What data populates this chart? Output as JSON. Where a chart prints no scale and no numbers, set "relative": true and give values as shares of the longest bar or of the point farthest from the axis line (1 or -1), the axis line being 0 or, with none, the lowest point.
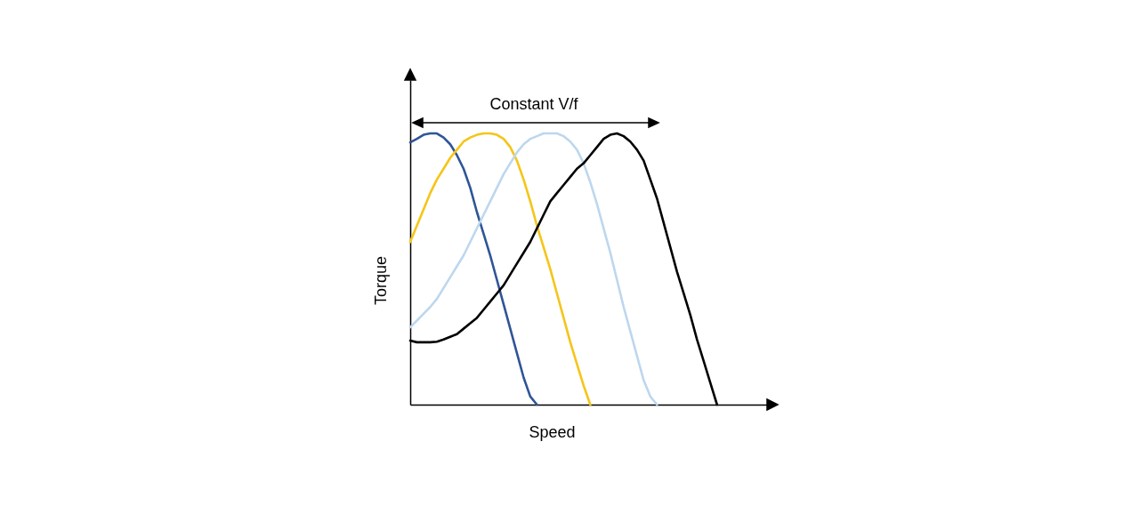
{
  "chart_data": {
    "type": "line",
    "relative": true,
    "xlabel": "Speed",
    "ylabel": "Torque",
    "annotations": [
      "Constant V/f"
    ],
    "categories": [
      null,
      null,
      null,
      null,
      null,
      null,
      null,
      null,
      null,
      null,
      null,
      null,
      null,
      null,
      null,
      null,
      null,
      null,
      null,
      null,
      null,
      null,
      null,
      null,
      null,
      null,
      null,
      null,
      null,
      null,
      null,
      null,
      null,
      null,
      null,
      null,
      null,
      null,
      null,
      null,
      null,
      null,
      null,
      null,
      null,
      null,
      null
    ],
    "series": [
      {
        "color": "#2f5597",
        "values": [
          0.967,
          0.98,
          0.995,
          1.0,
          1.0,
          0.985,
          0.96,
          0.92,
          0.87,
          0.8,
          0.71,
          0.63,
          0.55,
          0.46,
          0.37,
          0.28,
          0.19,
          0.1,
          0.03,
          0,
          null,
          null,
          null,
          null,
          null,
          null,
          null,
          null,
          null,
          null,
          null,
          null,
          null,
          null,
          null,
          null,
          null,
          null,
          null,
          null,
          null,
          null,
          null,
          null,
          null,
          null,
          null
        ]
      },
      {
        "color": "#f5c518",
        "values": [
          0.6,
          0.66,
          0.72,
          0.78,
          0.83,
          0.87,
          0.91,
          0.94,
          0.97,
          0.985,
          0.995,
          1.0,
          1.0,
          0.995,
          0.98,
          0.95,
          0.9,
          0.83,
          0.75,
          0.66,
          0.58,
          0.5,
          0.41,
          0.32,
          0.23,
          0.15,
          0.07,
          0,
          null,
          null,
          null,
          null,
          null,
          null,
          null,
          null,
          null,
          null,
          null,
          null,
          null,
          null,
          null,
          null,
          null,
          null,
          null
        ]
      },
      {
        "color": "#bdd7ee",
        "values": [
          0.285,
          0.31,
          0.335,
          0.36,
          0.39,
          0.43,
          0.47,
          0.51,
          0.55,
          0.6,
          0.65,
          0.7,
          0.75,
          0.8,
          0.85,
          0.89,
          0.93,
          0.96,
          0.98,
          0.99,
          1.0,
          1.0,
          1.0,
          0.99,
          0.97,
          0.94,
          0.89,
          0.82,
          0.74,
          0.65,
          0.56,
          0.46,
          0.36,
          0.27,
          0.18,
          0.09,
          0.03,
          0,
          null,
          null,
          null,
          null,
          null,
          null,
          null,
          null,
          null
        ]
      },
      {
        "color": "#000000",
        "values": [
          0.236,
          0.23,
          0.23,
          0.23,
          0.232,
          0.24,
          0.25,
          0.26,
          0.28,
          0.3,
          0.32,
          0.35,
          0.38,
          0.41,
          0.44,
          0.48,
          0.52,
          0.56,
          0.6,
          0.65,
          0.7,
          0.75,
          0.78,
          0.81,
          0.84,
          0.87,
          0.89,
          0.92,
          0.95,
          0.98,
          0.995,
          1.0,
          0.99,
          0.97,
          0.94,
          0.9,
          0.83,
          0.76,
          0.67,
          0.58,
          0.49,
          0.41,
          0.33,
          0.24,
          0.16,
          0.08,
          0
        ]
      }
    ]
  }
}
